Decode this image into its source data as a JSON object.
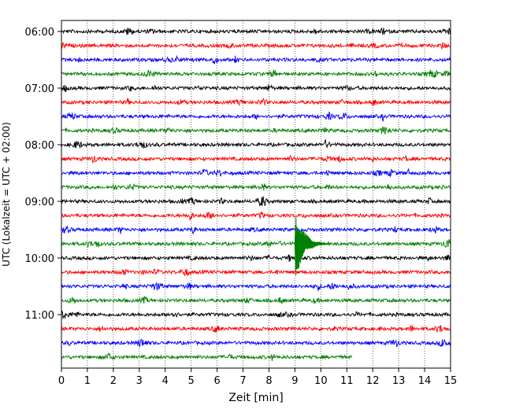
{
  "chart_data": {
    "type": "line",
    "title": "",
    "xlabel": "Zeit  [min]",
    "ylabel": "UTC (Lokalzeit = UTC + 02:00)",
    "xlim": [
      0,
      15
    ],
    "x_ticks": [
      "0",
      "1",
      "2",
      "3",
      "4",
      "5",
      "6",
      "7",
      "8",
      "9",
      "10",
      "11",
      "12",
      "13",
      "14",
      "15"
    ],
    "y_ticks": [
      "06:00",
      "07:00",
      "08:00",
      "09:00",
      "10:00",
      "11:00"
    ],
    "trace_interval_min": 15,
    "grid": "vertical-dotted",
    "trace_colors": [
      "#000000",
      "#ff0000",
      "#0000ff",
      "#008000"
    ],
    "traces": [
      {
        "start": "06:00",
        "end_min": 15
      },
      {
        "start": "06:15",
        "end_min": 15
      },
      {
        "start": "06:30",
        "end_min": 15
      },
      {
        "start": "06:45",
        "end_min": 15
      },
      {
        "start": "07:00",
        "end_min": 15
      },
      {
        "start": "07:15",
        "end_min": 15
      },
      {
        "start": "07:30",
        "end_min": 15
      },
      {
        "start": "07:45",
        "end_min": 15
      },
      {
        "start": "08:00",
        "end_min": 15
      },
      {
        "start": "08:15",
        "end_min": 15
      },
      {
        "start": "08:30",
        "end_min": 15
      },
      {
        "start": "08:45",
        "end_min": 15
      },
      {
        "start": "09:00",
        "end_min": 15
      },
      {
        "start": "09:15",
        "end_min": 15
      },
      {
        "start": "09:30",
        "end_min": 15
      },
      {
        "start": "09:45",
        "end_min": 15
      },
      {
        "start": "10:00",
        "end_min": 15
      },
      {
        "start": "10:15",
        "end_min": 15
      },
      {
        "start": "10:30",
        "end_min": 15
      },
      {
        "start": "10:45",
        "end_min": 15
      },
      {
        "start": "11:00",
        "end_min": 15
      },
      {
        "start": "11:15",
        "end_min": 15
      },
      {
        "start": "11:30",
        "end_min": 15
      },
      {
        "start": "11:45",
        "end_min": 11.2
      }
    ],
    "events": [
      {
        "start": "09:45",
        "x_min": 9.0,
        "peak_traces": 3,
        "color": "#008000"
      }
    ]
  }
}
